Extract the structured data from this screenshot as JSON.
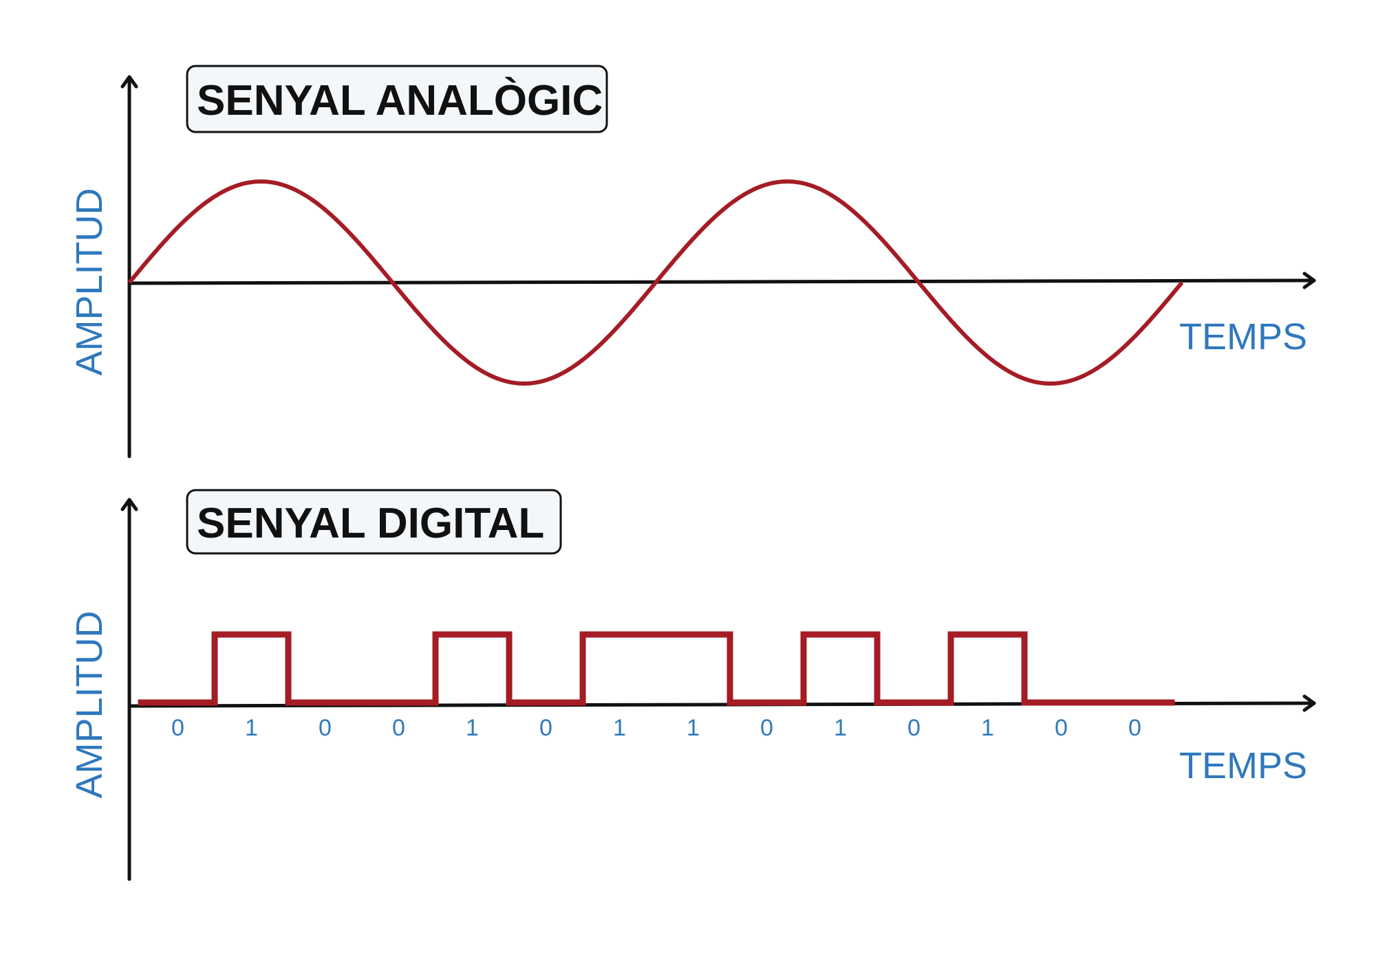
{
  "panels": [
    {
      "title": "SENYAL ANALÒGIC",
      "y_label": "AMPLITUD",
      "x_label": "TEMPS"
    },
    {
      "title": "SENYAL DIGITAL",
      "y_label": "AMPLITUD",
      "x_label": "TEMPS",
      "bits": [
        0,
        1,
        0,
        0,
        1,
        0,
        1,
        1,
        0,
        1,
        0,
        1,
        0,
        0
      ]
    }
  ]
}
